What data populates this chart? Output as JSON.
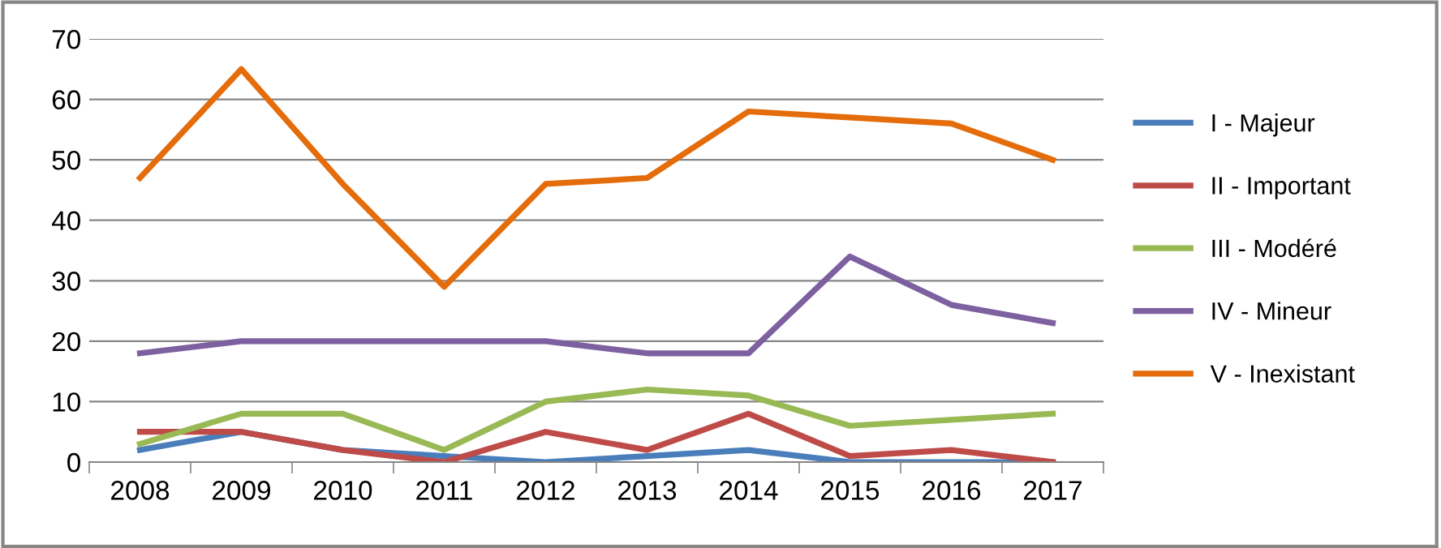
{
  "chart_data": {
    "type": "line",
    "categories": [
      "2008",
      "2009",
      "2010",
      "2011",
      "2012",
      "2013",
      "2014",
      "2015",
      "2016",
      "2017"
    ],
    "series": [
      {
        "name": "I - Majeur",
        "color": "#4a7ebb",
        "values": [
          2,
          5,
          2,
          1,
          0,
          1,
          2,
          0,
          0,
          0
        ]
      },
      {
        "name": "II - Important",
        "color": "#be4b48",
        "values": [
          5,
          5,
          2,
          0,
          5,
          2,
          8,
          1,
          2,
          0
        ]
      },
      {
        "name": "III - Modéré",
        "color": "#98b954",
        "values": [
          3,
          8,
          8,
          2,
          10,
          12,
          11,
          6,
          7,
          8
        ]
      },
      {
        "name": "IV - Mineur",
        "color": "#7d60a0",
        "values": [
          18,
          20,
          20,
          20,
          20,
          18,
          18,
          34,
          26,
          23
        ]
      },
      {
        "name": "V - Inexistant",
        "color": "#e46c0a",
        "values": [
          47,
          65,
          46,
          29,
          46,
          47,
          58,
          57,
          56,
          50
        ]
      }
    ],
    "ylim": [
      0,
      70
    ],
    "yticks": [
      0,
      10,
      20,
      30,
      40,
      50,
      60,
      70
    ],
    "grid": "y",
    "legend": "right",
    "marker": "none",
    "line_style": "solid"
  }
}
